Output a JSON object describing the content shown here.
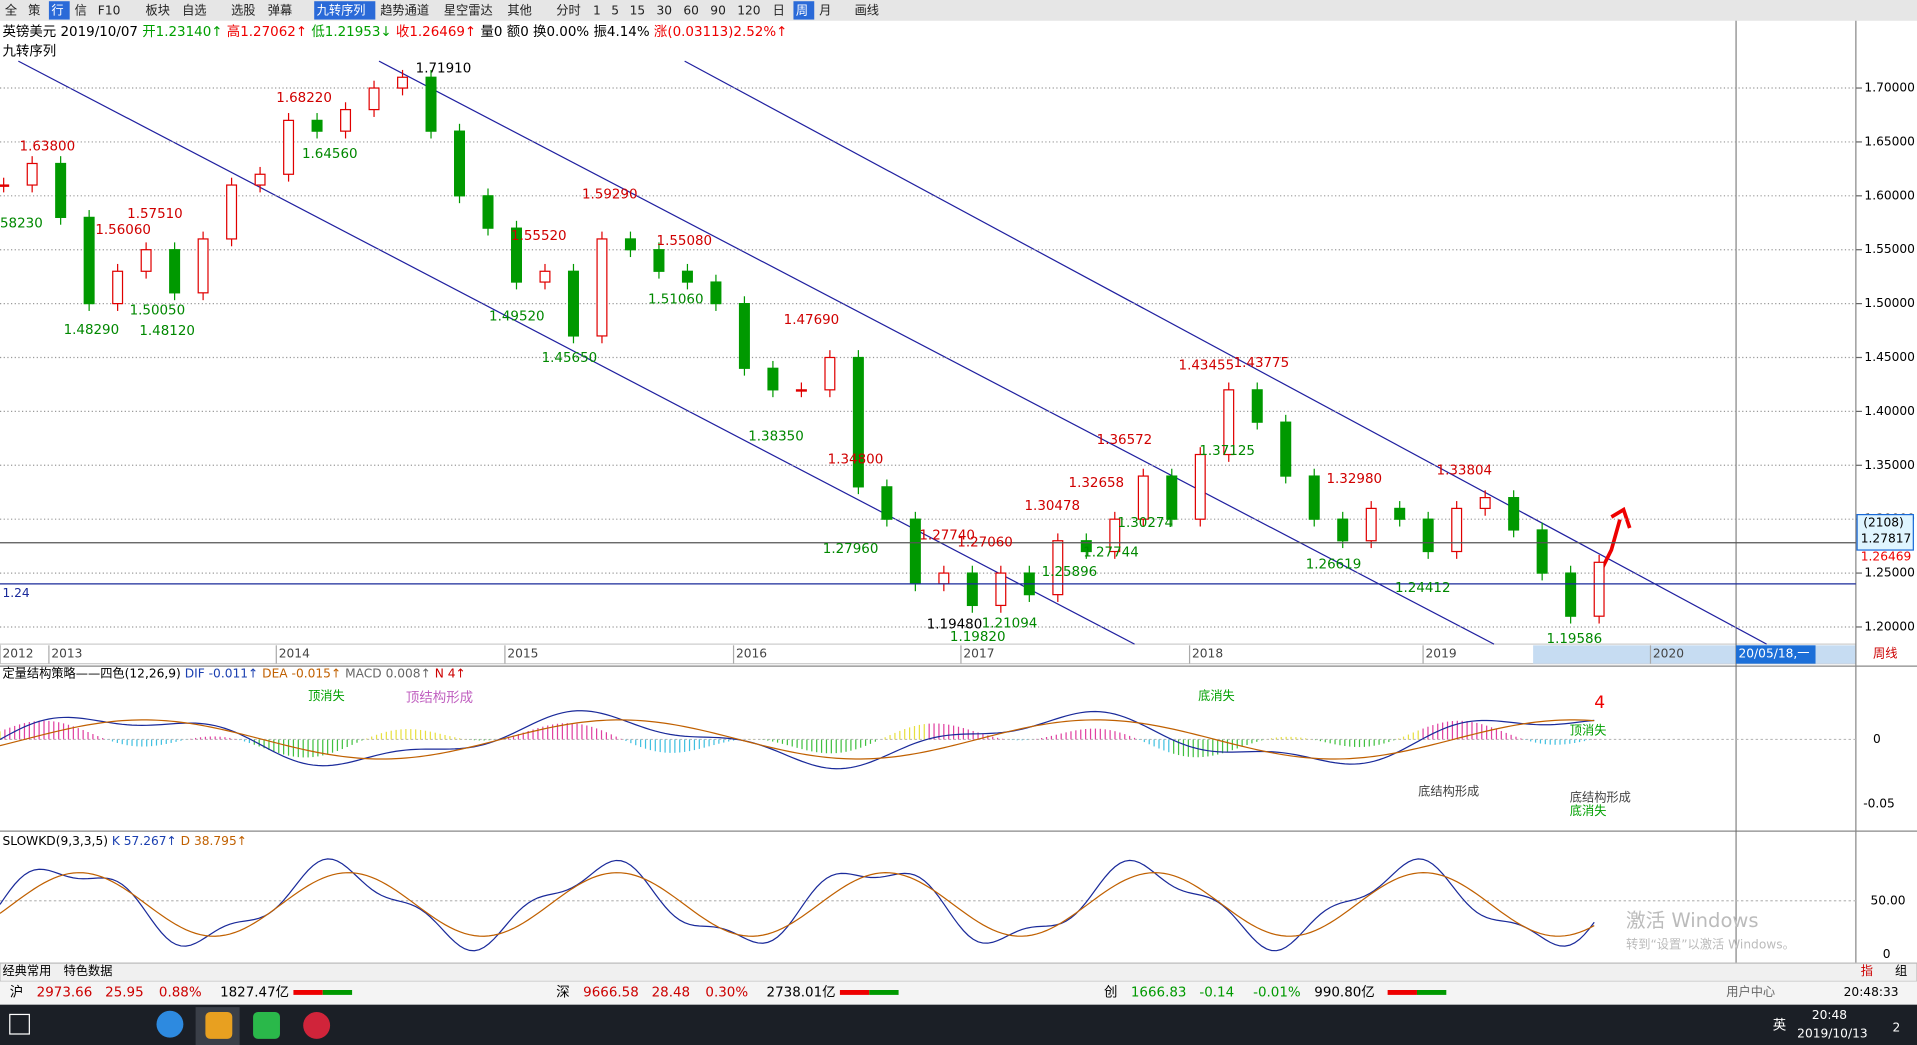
{
  "toolbar": [
    "全",
    "策",
    "行",
    "信",
    "F10",
    "板块",
    "自选",
    "选股",
    "弹幕",
    "九转序列",
    "趋势通道",
    "星空雷达",
    "其他",
    "分时",
    "1",
    "5",
    "15",
    "30",
    "60",
    "90",
    "120",
    "日",
    "周",
    "月",
    "画线"
  ],
  "header": {
    "items": [
      "英镑美元",
      "2019/10/07",
      "开1.23140↑",
      "高1.27062↑",
      "低1.21953↓",
      "收1.26469↑",
      "量0",
      "额0",
      "换0.00%",
      "振4.14%",
      "涨(0.03113)2.52%↑"
    ],
    "indicator": "九转序列"
  },
  "chart_data": {
    "type": "candlestick",
    "values": [
      1.61,
      1.63,
      1.58,
      1.5,
      1.53,
      1.55,
      1.51,
      1.56,
      1.61,
      1.62,
      1.67,
      1.66,
      1.68,
      1.7,
      1.71,
      1.66,
      1.6,
      1.57,
      1.52,
      1.53,
      1.47,
      1.56,
      1.55,
      1.53,
      1.52,
      1.5,
      1.44,
      1.42,
      1.42,
      1.45,
      1.33,
      1.3,
      1.24,
      1.25,
      1.22,
      1.25,
      1.23,
      1.28,
      1.27,
      1.3,
      1.34,
      1.3,
      1.36,
      1.42,
      1.39,
      1.34,
      1.3,
      1.28,
      1.31,
      1.3,
      1.27,
      1.31,
      1.32,
      1.29,
      1.25,
      1.21,
      1.26
    ],
    "up_color": "#e00000",
    "down_color": "#009900",
    "ylim": [
      1.1841,
      1.7624
    ],
    "yticks": [
      {
        "value": 1.2,
        "label": "1.20000"
      },
      {
        "value": 1.25,
        "label": "1.25000"
      },
      {
        "value": 1.3,
        "label": "1.30000"
      },
      {
        "value": 1.35,
        "label": "1.35000"
      },
      {
        "value": 1.4,
        "label": "1.40000"
      },
      {
        "value": 1.45,
        "label": "1.45000"
      },
      {
        "value": 1.5,
        "label": "1.50000"
      },
      {
        "value": 1.55,
        "label": "1.55000"
      },
      {
        "value": 1.6,
        "label": "1.60000"
      },
      {
        "value": 1.65,
        "label": "1.65000"
      },
      {
        "value": 1.7,
        "label": "1.70000"
      }
    ],
    "grid": true,
    "levels": [
      {
        "value": 1.27817,
        "label": "1.27817",
        "tag": "(2108)"
      },
      {
        "value": 1.24,
        "label": "1.24"
      }
    ],
    "last": {
      "value": 1.26469,
      "label": "1.26469"
    },
    "x_labels": [
      "2012",
      "2013",
      "2014",
      "2015",
      "2016",
      "2017",
      "2018",
      "2019",
      "2020"
    ],
    "cursor_label": "20/05/18,一",
    "period": "周线",
    "annotations": [
      "1.63800",
      "58230",
      "1.48290",
      "1.50050",
      "1.48120",
      "1.56060",
      "1.57510",
      "1.68220",
      "1.64560",
      "1.71910",
      "1.59290",
      "1.55520",
      "1.55080",
      "1.49520",
      "1.45650",
      "1.51060",
      "1.47690",
      "1.38350",
      "1.34800",
      "1.27960",
      "1.27740",
      "1.27060",
      "1.19480",
      "1.19820",
      "1.21094",
      "1.25896",
      "1.30478",
      "1.32658",
      "1.27744",
      "1.30274",
      "1.36572",
      "1.43455",
      "1.43775",
      "1.37125",
      "1.32980",
      "1.26619",
      "1.33804",
      "1.24412",
      "1.19586"
    ]
  },
  "macd": {
    "title": "定量结构策略——四色(12,26,9)",
    "dif": "DIF -0.011↑",
    "dea": "DEA -0.015↑",
    "macd": "MACD 0.008↑",
    "n": "N 4↑",
    "ticks": [
      "0",
      "-0.05"
    ],
    "labels": [
      "顶消失",
      "顶结构形成",
      "底消失",
      "底结构形成",
      "顶消失",
      "底结构形成",
      "底消失",
      "4"
    ]
  },
  "kd": {
    "title": "SLOWKD(9,3,3,5)",
    "k": "K 57.267↑",
    "d": "D 38.795↑",
    "ticks": [
      "50.00",
      "0"
    ]
  },
  "tabs": [
    "经典常用",
    "特色数据",
    "指",
    "组"
  ],
  "status": {
    "sh": [
      "沪",
      "2973.66",
      "25.95",
      "0.88%",
      "1827.47亿"
    ],
    "sz": [
      "深",
      "9666.58",
      "28.48",
      "0.30%",
      "2738.01亿"
    ],
    "cy": [
      "创",
      "1666.83",
      "-0.14",
      "-0.01%",
      "990.80亿"
    ],
    "user": "用户中心",
    "clock": "20:48:33"
  },
  "watermark": [
    "激活 Windows",
    "转到“设置”以激活 Windows。"
  ],
  "taskbar": {
    "lang": "英",
    "time": "20:48",
    "date": "2019/10/13",
    "badge": "2"
  }
}
